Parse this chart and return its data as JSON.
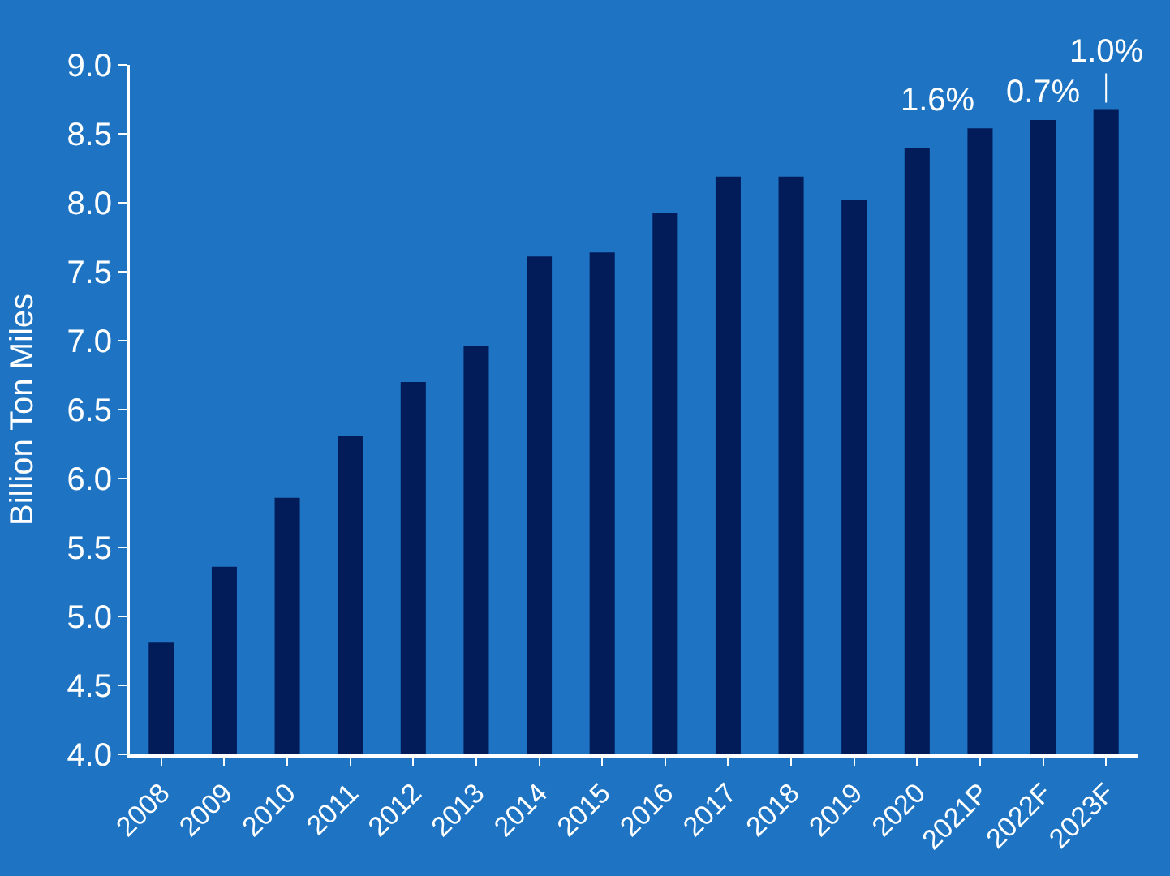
{
  "chart_data": {
    "type": "bar",
    "ylabel": "Billion Ton Miles",
    "categories": [
      "2008",
      "2009",
      "2010",
      "2011",
      "2012",
      "2013",
      "2014",
      "2015",
      "2016",
      "2017",
      "2018",
      "2019",
      "2020",
      "2021P",
      "2022F",
      "2023F"
    ],
    "values": [
      4.81,
      5.36,
      5.86,
      6.31,
      6.7,
      6.96,
      7.61,
      7.64,
      7.93,
      8.19,
      8.19,
      8.02,
      8.4,
      8.54,
      8.6,
      8.68
    ],
    "color": "#021c5a",
    "ylim": [
      4.0,
      9.0
    ],
    "yticks": [
      {
        "value": 4.0,
        "label": "4.0"
      },
      {
        "value": 4.5,
        "label": "4.5"
      },
      {
        "value": 5.0,
        "label": "5.0"
      },
      {
        "value": 5.5,
        "label": "5.5"
      },
      {
        "value": 6.0,
        "label": "6.0"
      },
      {
        "value": 6.5,
        "label": "6.5"
      },
      {
        "value": 7.0,
        "label": "7.0"
      },
      {
        "value": 7.5,
        "label": "7.5"
      },
      {
        "value": 8.0,
        "label": "8.0"
      },
      {
        "value": 8.5,
        "label": "8.5"
      },
      {
        "value": 9.0,
        "label": "9.0"
      }
    ],
    "annotations": [
      {
        "text": "1.6%",
        "x": "2021P",
        "y": 8.54
      },
      {
        "text": "0.7%",
        "x": "2022F",
        "y": 8.6
      },
      {
        "text": "1.0%",
        "x": "2023F",
        "y": 8.68
      }
    ]
  }
}
